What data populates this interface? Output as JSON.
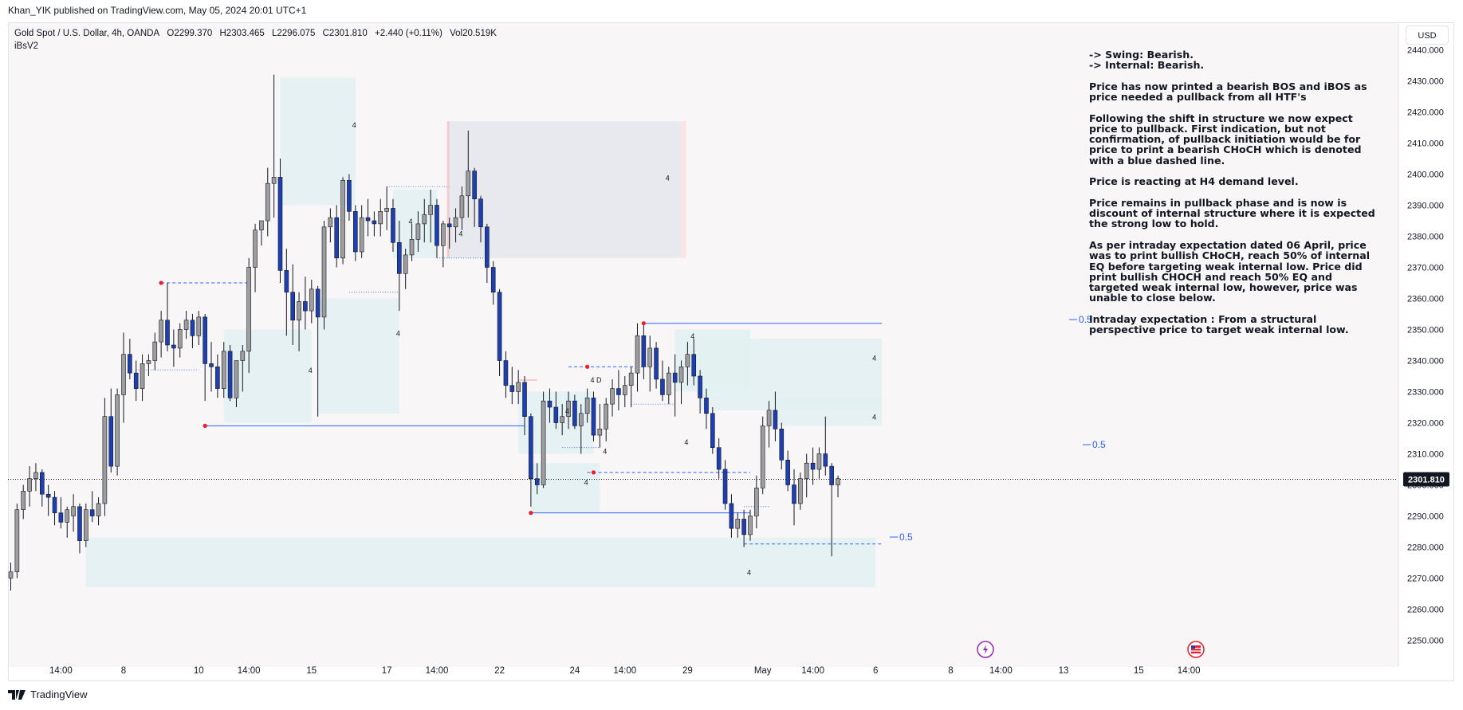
{
  "header": {
    "published_by": "Khan_YIK published on TradingView.com, May 05, 2024 20:01 UTC+1"
  },
  "legend": {
    "symbol": "Gold Spot / U.S. Dollar, 4h, OANDA",
    "open": "O2299.370",
    "high": "H2303.465",
    "low": "L2296.075",
    "close": "C2301.810",
    "change": "+2.440 (+0.11%)",
    "volume": "Vol20.519K",
    "indicator": "iBsV2"
  },
  "currency_button": "USD",
  "price_badge": "2301.810",
  "colors": {
    "bull": "#9e9e9e",
    "bear": "#1d3fb0",
    "zone": "#e2f1f1",
    "supply_zone": "#e6e8ec",
    "line": "#2962ff",
    "swing_dot": "#e91e2c",
    "background": "#f8f6f7"
  },
  "notes": [
    "-> Swing:  Bearish.\n-> Internal:  Bearish.",
    "Price has now printed a bearish BOS and iBOS as price needed a pullback from all HTF's",
    "Following the shift in structure we now expect price to pullback.  First indication, but not confirmation, of pullback initiation would be for price to print a bearish CHoCH which is denoted with a blue dashed line.",
    "Price is reacting at H4 demand level.",
    "Price remains in pullback phase and is now is discount of internal structure where it is expected the strong low to hold.",
    "As per intraday expectation dated 06 April, price was to print bullish CHoCH, reach 50% of internal EQ before targeting weak internal low. Price did print bullish CHOCH and reach 50% EQ and targeted weak internal low, however, price was unable to close below.",
    "Intraday expectation : From a structural perspective price to target weak internal low."
  ],
  "footer": {
    "brand": "TradingView"
  },
  "chart_data": {
    "type": "candlestick",
    "symbol": "Gold Spot / U.S. Dollar",
    "timeframe": "4h",
    "y_axis": {
      "ticks": [
        "2440.000",
        "2430.000",
        "2420.000",
        "2410.000",
        "2400.000",
        "2390.000",
        "2380.000",
        "2370.000",
        "2360.000",
        "2350.000",
        "2340.000",
        "2330.000",
        "2320.000",
        "2310.000",
        "2300.000",
        "2290.000",
        "2280.000",
        "2270.000",
        "2260.000",
        "2250.000"
      ],
      "range": [
        2249,
        2443
      ],
      "last_price": 2301.81
    },
    "x_axis": {
      "ticks": [
        {
          "label": "14:00",
          "i": 8
        },
        {
          "label": "8",
          "i": 18
        },
        {
          "label": "10",
          "i": 30
        },
        {
          "label": "14:00",
          "i": 38
        },
        {
          "label": "15",
          "i": 48
        },
        {
          "label": "17",
          "i": 60
        },
        {
          "label": "14:00",
          "i": 68
        },
        {
          "label": "22",
          "i": 78
        },
        {
          "label": "24",
          "i": 90
        },
        {
          "label": "14:00",
          "i": 98
        },
        {
          "label": "29",
          "i": 108
        },
        {
          "label": "May",
          "i": 120
        },
        {
          "label": "14:00",
          "i": 128
        },
        {
          "label": "6",
          "i": 138
        },
        {
          "label": "8",
          "i": 150
        },
        {
          "label": "14:00",
          "i": 158
        },
        {
          "label": "13",
          "i": 168
        },
        {
          "label": "15",
          "i": 180
        },
        {
          "label": "14:00",
          "i": 188
        }
      ]
    },
    "candles": [
      [
        2270,
        2275,
        2266,
        2272
      ],
      [
        2272,
        2294,
        2270,
        2292
      ],
      [
        2292,
        2300,
        2289,
        2298
      ],
      [
        2298,
        2306,
        2293,
        2302
      ],
      [
        2302,
        2307,
        2298,
        2304
      ],
      [
        2304,
        2305,
        2293,
        2297
      ],
      [
        2297,
        2300,
        2290,
        2296
      ],
      [
        2296,
        2298,
        2287,
        2291
      ],
      [
        2291,
        2296,
        2286,
        2288
      ],
      [
        2288,
        2293,
        2283,
        2292
      ],
      [
        2290,
        2297,
        2285,
        2293
      ],
      [
        2293,
        2294,
        2278,
        2282
      ],
      [
        2282,
        2294,
        2280,
        2292
      ],
      [
        2292,
        2298,
        2288,
        2290
      ],
      [
        2290,
        2296,
        2287,
        2294
      ],
      [
        2294,
        2328,
        2290,
        2322
      ],
      [
        2322,
        2331,
        2304,
        2306
      ],
      [
        2306,
        2331,
        2303,
        2329
      ],
      [
        2329,
        2349,
        2320,
        2342
      ],
      [
        2342,
        2347,
        2334,
        2336
      ],
      [
        2336,
        2340,
        2327,
        2331
      ],
      [
        2331,
        2342,
        2327,
        2339
      ],
      [
        2339,
        2342,
        2335,
        2340
      ],
      [
        2340,
        2349,
        2337,
        2346
      ],
      [
        2346,
        2356,
        2341,
        2353
      ],
      [
        2353,
        2365,
        2343,
        2345
      ],
      [
        2345,
        2350,
        2338,
        2344
      ],
      [
        2344,
        2352,
        2341,
        2350
      ],
      [
        2350,
        2356,
        2347,
        2353
      ],
      [
        2353,
        2355,
        2344,
        2348
      ],
      [
        2348,
        2356,
        2345,
        2354
      ],
      [
        2354,
        2355,
        2327,
        2339
      ],
      [
        2339,
        2346,
        2330,
        2338
      ],
      [
        2338,
        2342,
        2328,
        2331
      ],
      [
        2331,
        2346,
        2328,
        2343
      ],
      [
        2343,
        2345,
        2327,
        2328
      ],
      [
        2328,
        2340,
        2325,
        2340
      ],
      [
        2340,
        2345,
        2330,
        2343
      ],
      [
        2343,
        2373,
        2336,
        2370
      ],
      [
        2370,
        2384,
        2362,
        2382
      ],
      [
        2382,
        2385,
        2377,
        2385
      ],
      [
        2385,
        2402,
        2380,
        2397
      ],
      [
        2397,
        2432,
        2386,
        2399
      ],
      [
        2399,
        2405,
        2365,
        2369
      ],
      [
        2369,
        2376,
        2348,
        2362
      ],
      [
        2362,
        2371,
        2345,
        2353
      ],
      [
        2353,
        2362,
        2343,
        2359
      ],
      [
        2359,
        2367,
        2350,
        2356
      ],
      [
        2356,
        2366,
        2352,
        2363
      ],
      [
        2363,
        2364,
        2322,
        2354
      ],
      [
        2354,
        2385,
        2350,
        2383
      ],
      [
        2383,
        2389,
        2378,
        2386
      ],
      [
        2386,
        2390,
        2370,
        2373
      ],
      [
        2373,
        2399,
        2371,
        2398
      ],
      [
        2398,
        2400,
        2385,
        2388
      ],
      [
        2388,
        2390,
        2372,
        2375
      ],
      [
        2375,
        2390,
        2373,
        2386
      ],
      [
        2386,
        2392,
        2380,
        2385
      ],
      [
        2385,
        2388,
        2380,
        2384
      ],
      [
        2384,
        2392,
        2380,
        2388
      ],
      [
        2388,
        2396,
        2382,
        2389
      ],
      [
        2389,
        2392,
        2375,
        2378
      ],
      [
        2378,
        2385,
        2356,
        2368
      ],
      [
        2368,
        2376,
        2363,
        2374
      ],
      [
        2374,
        2384,
        2372,
        2379
      ],
      [
        2379,
        2388,
        2375,
        2384
      ],
      [
        2384,
        2392,
        2378,
        2387
      ],
      [
        2387,
        2395,
        2378,
        2390
      ],
      [
        2390,
        2392,
        2373,
        2377
      ],
      [
        2377,
        2385,
        2370,
        2384
      ],
      [
        2384,
        2386,
        2376,
        2383
      ],
      [
        2383,
        2389,
        2378,
        2386
      ],
      [
        2386,
        2396,
        2382,
        2393
      ],
      [
        2393,
        2414,
        2386,
        2401
      ],
      [
        2401,
        2402,
        2383,
        2392
      ],
      [
        2392,
        2393,
        2378,
        2383
      ],
      [
        2383,
        2384,
        2365,
        2370
      ],
      [
        2370,
        2372,
        2358,
        2362
      ],
      [
        2362,
        2363,
        2335,
        2340
      ],
      [
        2340,
        2343,
        2328,
        2332
      ],
      [
        2332,
        2338,
        2326,
        2330
      ],
      [
        2330,
        2337,
        2326,
        2333
      ],
      [
        2333,
        2335,
        2316,
        2322
      ],
      [
        2322,
        2323,
        2293,
        2302
      ],
      [
        2302,
        2307,
        2297,
        2300
      ],
      [
        2300,
        2330,
        2299,
        2327
      ],
      [
        2327,
        2331,
        2320,
        2325
      ],
      [
        2325,
        2330,
        2318,
        2320
      ],
      [
        2320,
        2326,
        2316,
        2322
      ],
      [
        2322,
        2330,
        2318,
        2327
      ],
      [
        2327,
        2329,
        2318,
        2319
      ],
      [
        2319,
        2326,
        2310,
        2323
      ],
      [
        2323,
        2331,
        2320,
        2328
      ],
      [
        2328,
        2330,
        2314,
        2316
      ],
      [
        2316,
        2326,
        2312,
        2318
      ],
      [
        2318,
        2328,
        2314,
        2326
      ],
      [
        2326,
        2334,
        2322,
        2331
      ],
      [
        2331,
        2337,
        2324,
        2329
      ],
      [
        2329,
        2335,
        2325,
        2332
      ],
      [
        2332,
        2338,
        2325,
        2336
      ],
      [
        2336,
        2352,
        2330,
        2348
      ],
      [
        2348,
        2352,
        2334,
        2338
      ],
      [
        2338,
        2348,
        2330,
        2344
      ],
      [
        2344,
        2346,
        2331,
        2334
      ],
      [
        2334,
        2340,
        2327,
        2329
      ],
      [
        2329,
        2338,
        2326,
        2336
      ],
      [
        2336,
        2342,
        2322,
        2333
      ],
      [
        2333,
        2340,
        2326,
        2338
      ],
      [
        2338,
        2346,
        2332,
        2342
      ],
      [
        2342,
        2347,
        2332,
        2335
      ],
      [
        2335,
        2337,
        2323,
        2328
      ],
      [
        2328,
        2331,
        2318,
        2323
      ],
      [
        2323,
        2325,
        2310,
        2312
      ],
      [
        2312,
        2315,
        2302,
        2305
      ],
      [
        2305,
        2308,
        2292,
        2294
      ],
      [
        2294,
        2297,
        2283,
        2286
      ],
      [
        2286,
        2291,
        2283,
        2289
      ],
      [
        2289,
        2292,
        2280,
        2284
      ],
      [
        2284,
        2292,
        2282,
        2290
      ],
      [
        2290,
        2303,
        2286,
        2299
      ],
      [
        2299,
        2322,
        2297,
        2319
      ],
      [
        2319,
        2327,
        2312,
        2324
      ],
      [
        2324,
        2330,
        2314,
        2318
      ],
      [
        2318,
        2320,
        2305,
        2308
      ],
      [
        2308,
        2311,
        2298,
        2300
      ],
      [
        2300,
        2305,
        2287,
        2294
      ],
      [
        2294,
        2304,
        2292,
        2302
      ],
      [
        2302,
        2310,
        2296,
        2307
      ],
      [
        2307,
        2312,
        2300,
        2305
      ],
      [
        2305,
        2312,
        2302,
        2310
      ],
      [
        2310,
        2322,
        2303,
        2306
      ],
      [
        2306,
        2307,
        2277,
        2300
      ],
      [
        2300,
        2303,
        2296,
        2302
      ]
    ],
    "annotations": {
      "level_labels": [
        "0.5",
        "0.5",
        "0.5"
      ],
      "zone_counts": [
        "4",
        "4",
        "4",
        "4",
        "4",
        "4",
        "4",
        "4",
        "4",
        "4",
        "4",
        "4",
        "4",
        "4",
        "4 D"
      ]
    }
  }
}
